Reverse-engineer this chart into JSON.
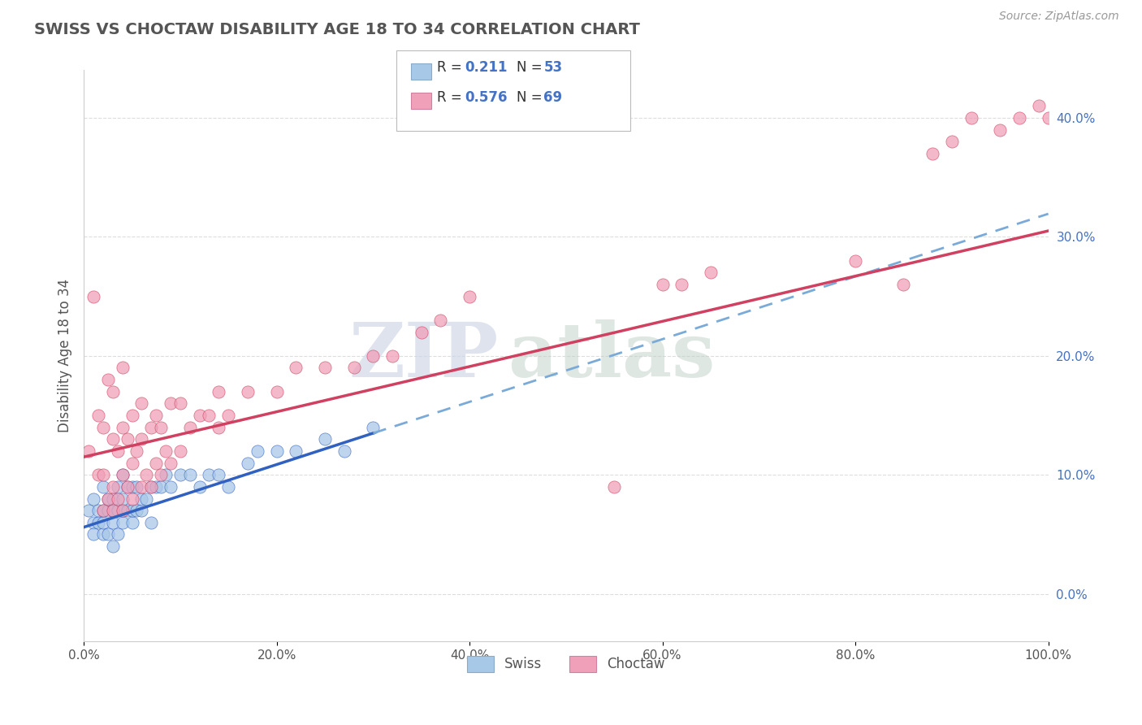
{
  "title": "SWISS VS CHOCTAW DISABILITY AGE 18 TO 34 CORRELATION CHART",
  "source_text": "Source: ZipAtlas.com",
  "ylabel": "Disability Age 18 to 34",
  "watermark_zip": "ZIP",
  "watermark_atlas": "atlas",
  "xlim": [
    0.0,
    1.0
  ],
  "ylim": [
    -0.04,
    0.44
  ],
  "swiss_R": 0.211,
  "swiss_N": 53,
  "choctaw_R": 0.576,
  "choctaw_N": 69,
  "swiss_color": "#A8C8E8",
  "choctaw_color": "#F0A0B8",
  "swiss_line_color": "#3060C0",
  "choctaw_line_color": "#D04060",
  "dashed_line_color": "#7AAAD8",
  "title_color": "#555555",
  "background_color": "#FFFFFF",
  "grid_color": "#DDDDDD",
  "legend_R_color": "#4472C4",
  "ytick_values": [
    0.0,
    0.1,
    0.2,
    0.3,
    0.4
  ],
  "xtick_values": [
    0.0,
    0.2,
    0.4,
    0.6,
    0.8,
    1.0
  ],
  "swiss_scatter_x": [
    0.005,
    0.01,
    0.01,
    0.01,
    0.015,
    0.015,
    0.02,
    0.02,
    0.02,
    0.02,
    0.025,
    0.025,
    0.025,
    0.03,
    0.03,
    0.03,
    0.03,
    0.035,
    0.035,
    0.035,
    0.04,
    0.04,
    0.04,
    0.04,
    0.045,
    0.045,
    0.05,
    0.05,
    0.05,
    0.055,
    0.055,
    0.06,
    0.06,
    0.065,
    0.07,
    0.07,
    0.075,
    0.08,
    0.085,
    0.09,
    0.1,
    0.11,
    0.12,
    0.13,
    0.14,
    0.15,
    0.17,
    0.18,
    0.2,
    0.22,
    0.25,
    0.27,
    0.3
  ],
  "swiss_scatter_y": [
    0.07,
    0.06,
    0.05,
    0.08,
    0.06,
    0.07,
    0.05,
    0.06,
    0.07,
    0.09,
    0.05,
    0.07,
    0.08,
    0.04,
    0.06,
    0.07,
    0.08,
    0.05,
    0.07,
    0.09,
    0.06,
    0.07,
    0.08,
    0.1,
    0.07,
    0.09,
    0.06,
    0.07,
    0.09,
    0.07,
    0.09,
    0.07,
    0.08,
    0.08,
    0.06,
    0.09,
    0.09,
    0.09,
    0.1,
    0.09,
    0.1,
    0.1,
    0.09,
    0.1,
    0.1,
    0.09,
    0.11,
    0.12,
    0.12,
    0.12,
    0.13,
    0.12,
    0.14
  ],
  "choctaw_scatter_x": [
    0.005,
    0.01,
    0.015,
    0.015,
    0.02,
    0.02,
    0.02,
    0.025,
    0.025,
    0.03,
    0.03,
    0.03,
    0.03,
    0.035,
    0.035,
    0.04,
    0.04,
    0.04,
    0.04,
    0.045,
    0.045,
    0.05,
    0.05,
    0.05,
    0.055,
    0.06,
    0.06,
    0.06,
    0.065,
    0.07,
    0.07,
    0.075,
    0.075,
    0.08,
    0.08,
    0.085,
    0.09,
    0.09,
    0.1,
    0.1,
    0.11,
    0.12,
    0.13,
    0.14,
    0.14,
    0.15,
    0.17,
    0.2,
    0.22,
    0.25,
    0.28,
    0.3,
    0.32,
    0.35,
    0.37,
    0.4,
    0.6,
    0.62,
    0.65,
    0.8,
    0.85,
    0.88,
    0.9,
    0.92,
    0.95,
    0.97,
    0.99,
    0.55,
    1.0
  ],
  "choctaw_scatter_y": [
    0.12,
    0.25,
    0.1,
    0.15,
    0.07,
    0.1,
    0.14,
    0.08,
    0.18,
    0.07,
    0.09,
    0.13,
    0.17,
    0.08,
    0.12,
    0.07,
    0.1,
    0.14,
    0.19,
    0.09,
    0.13,
    0.08,
    0.11,
    0.15,
    0.12,
    0.09,
    0.13,
    0.16,
    0.1,
    0.09,
    0.14,
    0.11,
    0.15,
    0.1,
    0.14,
    0.12,
    0.11,
    0.16,
    0.12,
    0.16,
    0.14,
    0.15,
    0.15,
    0.14,
    0.17,
    0.15,
    0.17,
    0.17,
    0.19,
    0.19,
    0.19,
    0.2,
    0.2,
    0.22,
    0.23,
    0.25,
    0.26,
    0.26,
    0.27,
    0.28,
    0.26,
    0.37,
    0.38,
    0.4,
    0.39,
    0.4,
    0.41,
    0.09,
    0.4
  ],
  "swiss_line_xmax": 0.3,
  "swiss_line_ystart": 0.056,
  "swiss_line_yend": 0.135,
  "choctaw_line_ystart": 0.115,
  "choctaw_line_yend": 0.305
}
